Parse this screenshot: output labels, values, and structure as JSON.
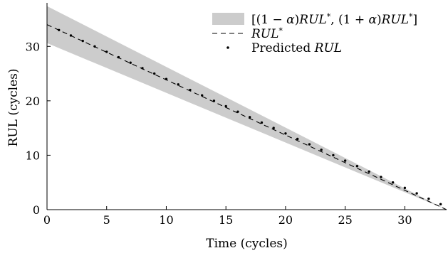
{
  "chart_data": {
    "type": "line",
    "xlabel": "Time (cycles)",
    "ylabel": "RUL (cycles)",
    "xlim": [
      0,
      33.5
    ],
    "ylim": [
      0,
      38
    ],
    "x_ticks": [
      0,
      5,
      10,
      15,
      20,
      25,
      30
    ],
    "y_ticks": [
      0,
      10,
      20,
      30
    ],
    "alpha_band_fraction": 0.1,
    "legend_position": "top-right",
    "grid": false,
    "series": [
      {
        "name": "[(1 − α)RUL*, (1 + α)RUL*]",
        "kind": "band",
        "color": "#cccccc",
        "x": [
          0,
          33.5
        ],
        "lower": [
          30.6,
          0
        ],
        "upper": [
          37.4,
          0
        ]
      },
      {
        "name": "RUL*",
        "kind": "dashed-line",
        "color": "#000000",
        "x": [
          0,
          33.5
        ],
        "values": [
          34,
          0
        ]
      },
      {
        "name": "Predicted RUL",
        "kind": "points",
        "color": "#000000",
        "x": [
          1,
          2,
          3,
          4,
          5,
          6,
          7,
          8,
          9,
          10,
          11,
          12,
          13,
          14,
          15,
          16,
          17,
          18,
          19,
          20,
          21,
          22,
          23,
          24,
          25,
          26,
          27,
          28,
          29,
          30,
          31,
          32,
          33
        ],
        "values": [
          33,
          32,
          31,
          30,
          29,
          28,
          27,
          26,
          25,
          24,
          23,
          22,
          21,
          20,
          19,
          18,
          17,
          16,
          15,
          14,
          13,
          12,
          11,
          10,
          9,
          8,
          7,
          6,
          5,
          4,
          3,
          2,
          1
        ]
      }
    ]
  },
  "legend": {
    "band_label_parts": [
      "[(1 − ",
      "α",
      ")",
      "RUL",
      "*",
      ", (1 + ",
      "α",
      ")",
      "RUL",
      "*",
      "]"
    ],
    "line_label_parts": [
      "RUL",
      "*"
    ],
    "points_label_prefix": "Predicted ",
    "points_label_math": "RUL"
  }
}
